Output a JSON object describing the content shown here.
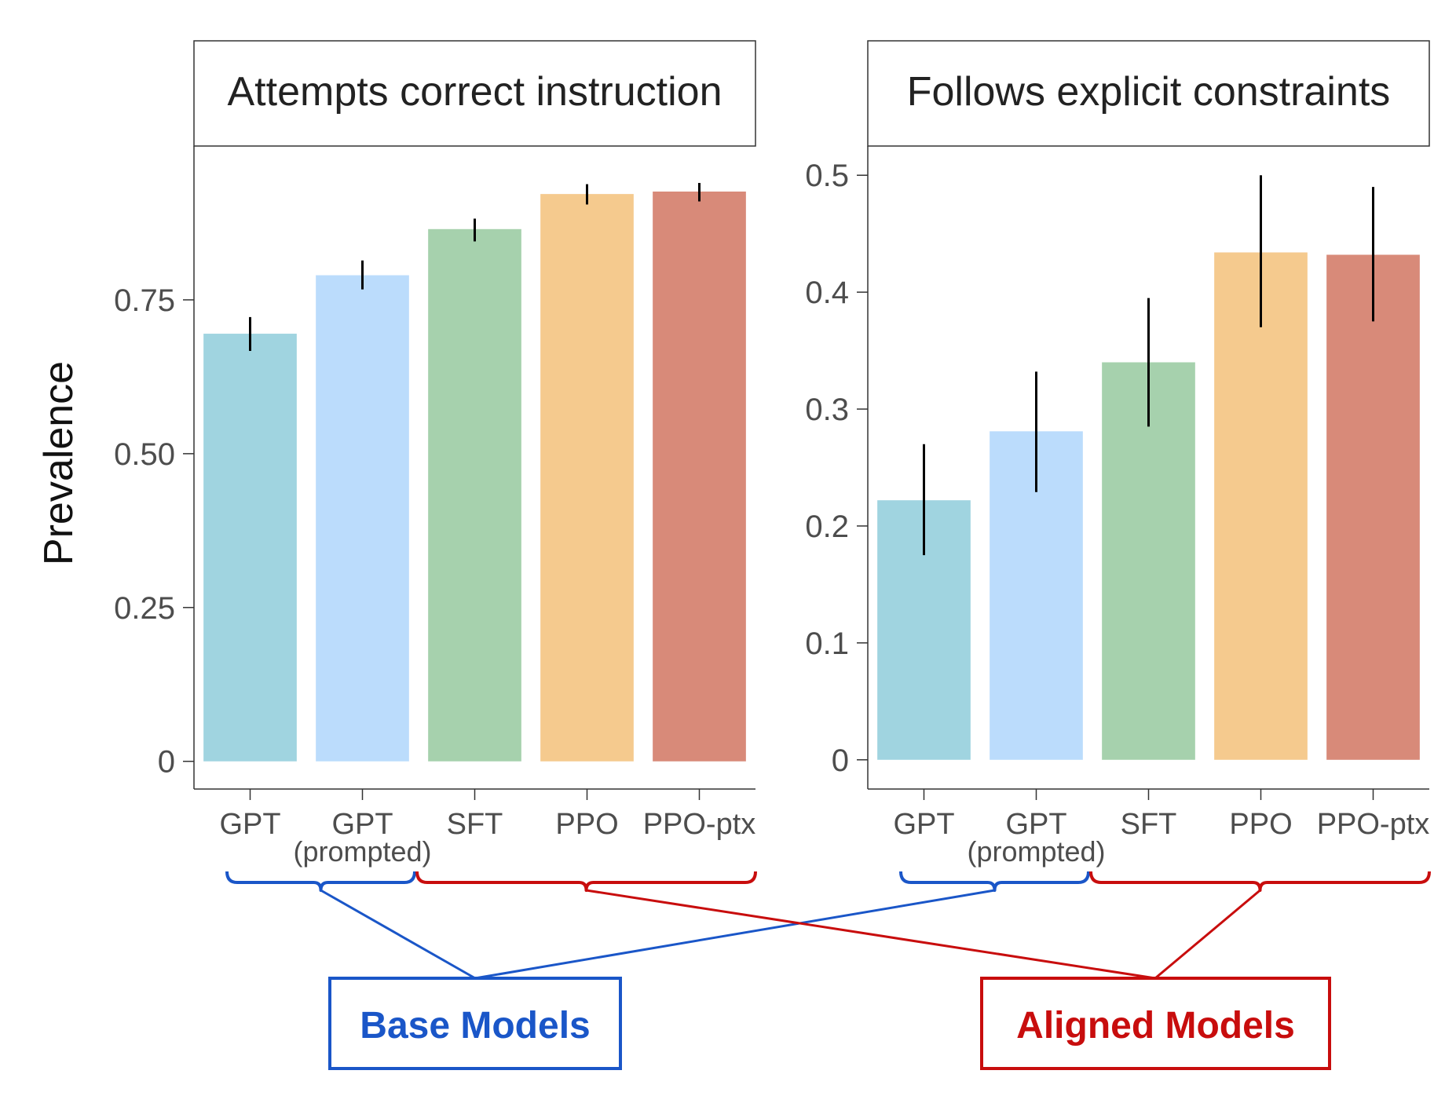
{
  "ylabel": "Prevalence",
  "palette": [
    "#a0d4e0",
    "#bbdcfc",
    "#a6d1ad",
    "#f5ca8e",
    "#d88a79"
  ],
  "chart_data": [
    {
      "type": "bar",
      "title": "Attempts correct instruction",
      "categories": [
        "GPT",
        "GPT",
        "SFT",
        "PPO",
        "PPO-ptx"
      ],
      "category_sublabels": [
        "",
        "(prompted)",
        "",
        "",
        ""
      ],
      "values": [
        0.695,
        0.79,
        0.865,
        0.922,
        0.926
      ],
      "error_low": [
        0.667,
        0.767,
        0.845,
        0.905,
        0.91
      ],
      "error_high": [
        0.722,
        0.814,
        0.882,
        0.938,
        0.94
      ],
      "yticks": [
        0,
        0.25,
        0.5,
        0.75
      ],
      "ytick_labels": [
        "0",
        "0.25",
        "0.50",
        "0.75"
      ],
      "ylim": [
        -0.045,
        1.0
      ],
      "xlabel": "",
      "ylabel": "Prevalence"
    },
    {
      "type": "bar",
      "title": "Follows explicit constraints",
      "categories": [
        "GPT",
        "GPT",
        "SFT",
        "PPO",
        "PPO-ptx"
      ],
      "category_sublabels": [
        "",
        "(prompted)",
        "",
        "",
        ""
      ],
      "values": [
        0.222,
        0.281,
        0.34,
        0.434,
        0.432
      ],
      "error_low": [
        0.175,
        0.229,
        0.285,
        0.37,
        0.375
      ],
      "error_high": [
        0.27,
        0.332,
        0.395,
        0.5,
        0.49
      ],
      "yticks": [
        0,
        0.1,
        0.2,
        0.3,
        0.4,
        0.5
      ],
      "ytick_labels": [
        "0",
        "0.1",
        "0.2",
        "0.3",
        "0.4",
        "0.5"
      ],
      "ylim": [
        -0.025,
        0.525
      ],
      "xlabel": "",
      "ylabel": ""
    }
  ],
  "groups": {
    "base": {
      "label": "Base Models",
      "color": "#1a56c8",
      "members": [
        "GPT",
        "GPT (prompted)"
      ]
    },
    "aligned": {
      "label": "Aligned Models",
      "color": "#c80d0d",
      "members": [
        "SFT",
        "PPO",
        "PPO-ptx"
      ]
    }
  }
}
